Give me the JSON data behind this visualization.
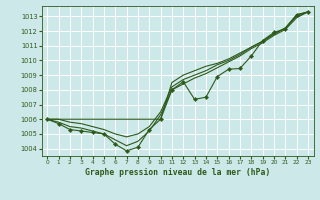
{
  "title": "Graphe pression niveau de la mer (hPa)",
  "bg_color": "#cce8e8",
  "grid_color": "#ffffff",
  "line_color": "#2d5a1b",
  "xlim": [
    -0.5,
    23.5
  ],
  "ylim": [
    1003.5,
    1013.7
  ],
  "yticks": [
    1004,
    1005,
    1006,
    1007,
    1008,
    1009,
    1010,
    1011,
    1012,
    1013
  ],
  "xticks": [
    0,
    1,
    2,
    3,
    4,
    5,
    6,
    7,
    8,
    9,
    10,
    11,
    12,
    13,
    14,
    15,
    16,
    17,
    18,
    19,
    20,
    21,
    22,
    23
  ],
  "series": {
    "flat_line": [
      1006,
      1006,
      1006,
      1006,
      1006,
      1006,
      1006,
      1006,
      1006,
      1006,
      1006,
      1008.5,
      1009.0,
      1009.3,
      1009.6,
      1009.8,
      1010.1,
      1010.5,
      1010.9,
      1011.3,
      1011.8,
      1012.2,
      1013.1,
      1013.3
    ],
    "upper_line": [
      1006,
      1006,
      1005.8,
      1005.7,
      1005.5,
      1005.3,
      1005.0,
      1004.8,
      1005.0,
      1005.5,
      1006.5,
      1008.2,
      1008.7,
      1009.0,
      1009.3,
      1009.7,
      1010.0,
      1010.4,
      1010.9,
      1011.3,
      1011.8,
      1012.2,
      1013.0,
      1013.3
    ],
    "mid_line": [
      1006,
      1005.8,
      1005.5,
      1005.4,
      1005.2,
      1005.0,
      1004.6,
      1004.2,
      1004.5,
      1005.2,
      1006.3,
      1008.0,
      1008.4,
      1008.8,
      1009.1,
      1009.5,
      1009.9,
      1010.3,
      1010.8,
      1011.2,
      1011.7,
      1012.1,
      1012.9,
      1013.3
    ],
    "main": [
      1006,
      1005.7,
      1005.3,
      1005.2,
      1005.1,
      1005.0,
      1004.3,
      1003.85,
      1004.1,
      1005.3,
      1006.0,
      1008.0,
      1008.55,
      1007.35,
      1007.5,
      1008.9,
      1009.4,
      1009.45,
      1010.3,
      1011.35,
      1011.9,
      1012.15,
      1013.1,
      1013.3
    ]
  }
}
